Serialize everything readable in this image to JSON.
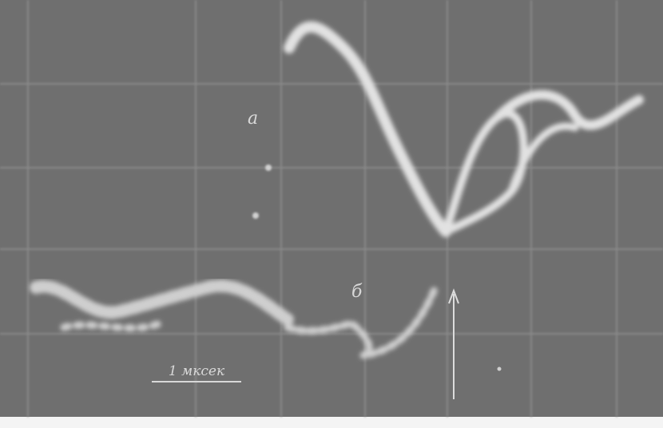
{
  "labels": {
    "trace_a": "а",
    "trace_b": "б",
    "scale": "1 мксек"
  }
}
